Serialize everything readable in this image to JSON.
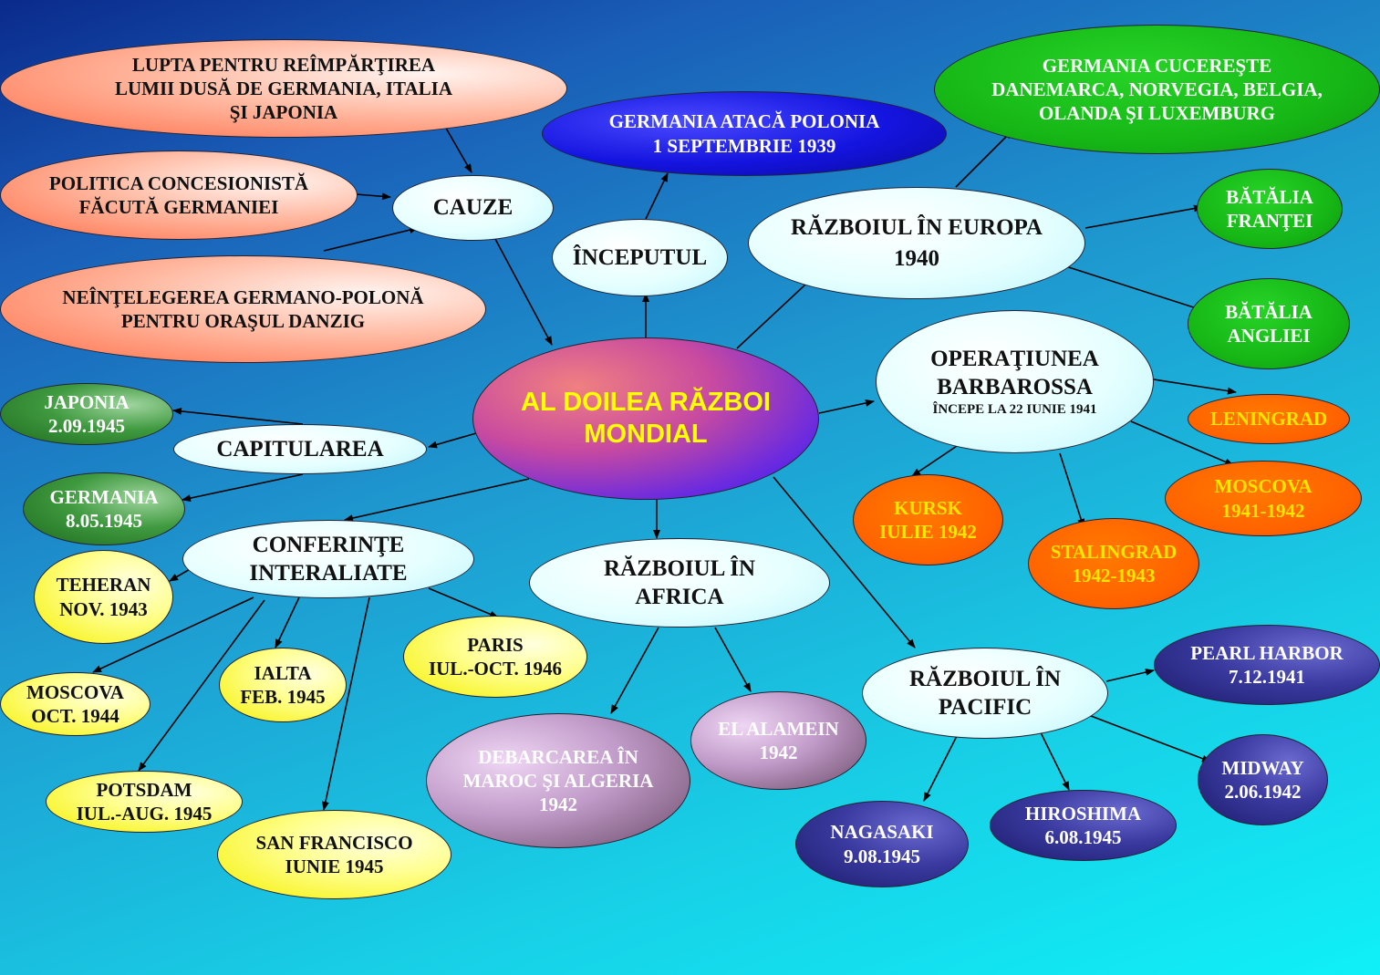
{
  "title": [
    "AL DOILEA RĂZBOI",
    "MONDIAL"
  ],
  "causes": {
    "label": "CAUZE",
    "items": [
      [
        "LUPTA PENTRU REÎMPĂRŢIREA",
        "LUMII DUSĂ DE GERMANIA, ITALIA",
        "ŞI JAPONIA"
      ],
      [
        "POLITICA CONCESIONISTĂ",
        "FĂCUTĂ GERMANIEI"
      ],
      [
        "NEÎNŢELEGEREA GERMANO-POLONĂ",
        "PENTRU ORAŞUL DANZIG"
      ]
    ]
  },
  "beginning": {
    "label": "ÎNCEPUTUL",
    "item": [
      "GERMANIA ATACĂ POLONIA",
      "1 SEPTEMBRIE 1939"
    ]
  },
  "europe": {
    "label": [
      "RĂZBOIUL ÎN EUROPA",
      "1940"
    ],
    "conquest": [
      "GERMANIA CUCEREŞTE",
      "DANEMARCA, NORVEGIA, BELGIA,",
      "OLANDA ŞI LUXEMBURG"
    ],
    "france": [
      "BĂTĂLIA",
      "FRANŢEI"
    ],
    "england": [
      "BĂTĂLIA",
      "ANGLIEI"
    ]
  },
  "barbarossa": {
    "label": [
      "OPERAŢIUNEA",
      "BARBAROSSA"
    ],
    "sub": "ÎNCEPE LA 22 IUNIE 1941",
    "leningrad": [
      "LENINGRAD"
    ],
    "moscow": [
      "MOSCOVA",
      "1941-1942"
    ],
    "stalingrad": [
      "STALINGRAD",
      "1942-1943"
    ],
    "kursk": [
      "KURSK",
      "IULIE 1942"
    ]
  },
  "capitulation": {
    "label": "CAPITULAREA",
    "japan": [
      "JAPONIA",
      "2.09.1945"
    ],
    "germany": [
      "GERMANIA",
      "8.05.1945"
    ]
  },
  "conferences": {
    "label": [
      "CONFERINŢE",
      "INTERALIATE"
    ],
    "teheran": [
      "TEHERAN",
      "NOV. 1943"
    ],
    "moscow": [
      "MOSCOVA",
      "OCT. 1944"
    ],
    "ialta": [
      "IALTA",
      "FEB. 1945"
    ],
    "potsdam": [
      "POTSDAM",
      "IUL.-AUG. 1945"
    ],
    "sanfrancisco": [
      "SAN FRANCISCO",
      "IUNIE 1945"
    ],
    "paris": [
      "PARIS",
      "IUL.-OCT. 1946"
    ]
  },
  "africa": {
    "label": [
      "RĂZBOIUL ÎN",
      "AFRICA"
    ],
    "morocco": [
      "DEBARCAREA  ÎN",
      "MAROC ŞI ALGERIA",
      "1942"
    ],
    "alamein": [
      "EL ALAMEIN",
      "1942"
    ]
  },
  "pacific": {
    "label": [
      "RĂZBOIUL ÎN",
      "PACIFIC"
    ],
    "pearl": [
      "PEARL HARBOR",
      "7.12.1941"
    ],
    "midway": [
      "MIDWAY",
      "2.06.1942"
    ],
    "hiroshima": [
      "HIROSHIMA",
      "6.08.1945"
    ],
    "nagasaki": [
      "NAGASAKI",
      "9.08.1945"
    ]
  }
}
